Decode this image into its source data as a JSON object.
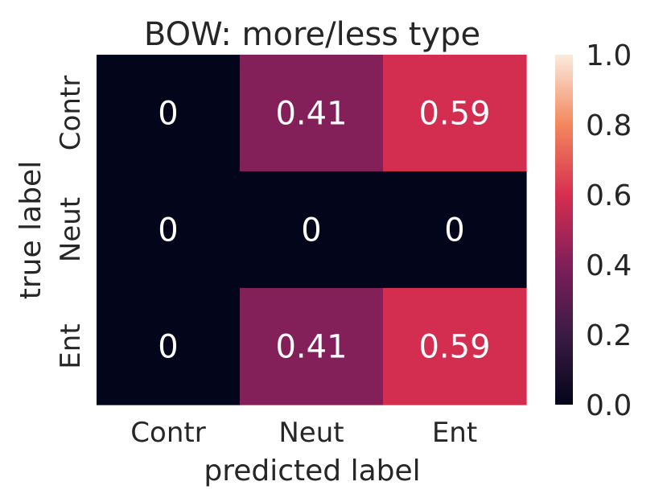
{
  "chart_data": {
    "type": "heatmap",
    "title": "BOW: more/less type",
    "xlabel": "predicted label",
    "ylabel": "true label",
    "x_categories": [
      "Contr",
      "Neut",
      "Ent"
    ],
    "y_categories": [
      "Contr",
      "Neut",
      "Ent"
    ],
    "values": [
      [
        0,
        0.41,
        0.59
      ],
      [
        0,
        0,
        0
      ],
      [
        0,
        0.41,
        0.59
      ]
    ],
    "annotations": [
      [
        "0",
        "0.41",
        "0.59"
      ],
      [
        "0",
        "0",
        "0"
      ],
      [
        "0",
        "0.41",
        "0.59"
      ]
    ],
    "colorbar": {
      "range": [
        0,
        1
      ],
      "ticks": [
        "0.0",
        "0.2",
        "0.4",
        "0.6",
        "0.8",
        "1.0"
      ],
      "colormap": "rocket"
    }
  }
}
